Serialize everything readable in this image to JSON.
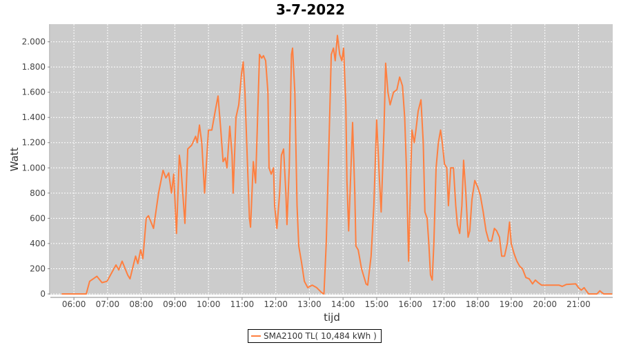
{
  "chart_data": {
    "type": "line",
    "title": "3-7-2022",
    "xlabel": "tijd",
    "ylabel": "Watt",
    "xlim": [
      "05:18",
      "22:01"
    ],
    "ylim": [
      0,
      2140
    ],
    "grid": true,
    "legend_placement": "bottom",
    "colors": {
      "line": "#ff7f3f",
      "plot_background": "#cccccc",
      "grid": "#ffffff"
    },
    "x_ticks": [
      "06:00",
      "07:00",
      "08:00",
      "09:00",
      "10:00",
      "11:00",
      "12:00",
      "13:00",
      "14:00",
      "15:00",
      "16:00",
      "17:00",
      "18:00",
      "19:00",
      "20:00",
      "21:00"
    ],
    "y_ticks": [
      0,
      200,
      400,
      600,
      800,
      1000,
      1200,
      1400,
      1600,
      1800,
      2000
    ],
    "y_tick_labels": [
      "0",
      "200",
      "400",
      "600",
      "800",
      "1.000",
      "1.200",
      "1.400",
      "1.600",
      "1.800",
      "2.000"
    ],
    "series": [
      {
        "name": "SMA2100 TL( 10,484 kWh )",
        "points": [
          [
            "05:38",
            0
          ],
          [
            "06:22",
            0
          ],
          [
            "06:28",
            100
          ],
          [
            "06:41",
            140
          ],
          [
            "06:50",
            90
          ],
          [
            "06:59",
            100
          ],
          [
            "07:15",
            230
          ],
          [
            "07:20",
            190
          ],
          [
            "07:26",
            260
          ],
          [
            "07:36",
            150
          ],
          [
            "07:40",
            120
          ],
          [
            "07:50",
            300
          ],
          [
            "07:54",
            240
          ],
          [
            "07:59",
            350
          ],
          [
            "08:03",
            280
          ],
          [
            "08:09",
            600
          ],
          [
            "08:13",
            620
          ],
          [
            "08:22",
            520
          ],
          [
            "08:31",
            800
          ],
          [
            "08:39",
            980
          ],
          [
            "08:44",
            920
          ],
          [
            "08:49",
            960
          ],
          [
            "08:54",
            800
          ],
          [
            "08:58",
            950
          ],
          [
            "09:03",
            480
          ],
          [
            "09:08",
            1100
          ],
          [
            "09:11",
            1000
          ],
          [
            "09:18",
            560
          ],
          [
            "09:23",
            1150
          ],
          [
            "09:30",
            1180
          ],
          [
            "09:37",
            1250
          ],
          [
            "09:40",
            1200
          ],
          [
            "09:44",
            1340
          ],
          [
            "09:48",
            1200
          ],
          [
            "09:53",
            800
          ],
          [
            "10:00",
            1300
          ],
          [
            "10:06",
            1300
          ],
          [
            "10:12",
            1450
          ],
          [
            "10:17",
            1570
          ],
          [
            "10:22",
            1300
          ],
          [
            "10:26",
            1050
          ],
          [
            "10:30",
            1080
          ],
          [
            "10:33",
            1000
          ],
          [
            "10:38",
            1330
          ],
          [
            "10:42",
            1100
          ],
          [
            "10:44",
            800
          ],
          [
            "10:49",
            1400
          ],
          [
            "10:54",
            1500
          ],
          [
            "10:59",
            1750
          ],
          [
            "11:02",
            1840
          ],
          [
            "11:05",
            1600
          ],
          [
            "11:09",
            1100
          ],
          [
            "11:13",
            600
          ],
          [
            "11:15",
            530
          ],
          [
            "11:20",
            1050
          ],
          [
            "11:24",
            880
          ],
          [
            "11:27",
            1300
          ],
          [
            "11:31",
            1900
          ],
          [
            "11:35",
            1870
          ],
          [
            "11:38",
            1890
          ],
          [
            "11:42",
            1850
          ],
          [
            "11:46",
            1600
          ],
          [
            "11:48",
            1000
          ],
          [
            "11:52",
            950
          ],
          [
            "11:56",
            1000
          ],
          [
            "11:58",
            700
          ],
          [
            "12:02",
            520
          ],
          [
            "12:07",
            800
          ],
          [
            "12:10",
            1100
          ],
          [
            "12:14",
            1150
          ],
          [
            "12:18",
            800
          ],
          [
            "12:20",
            550
          ],
          [
            "12:24",
            1000
          ],
          [
            "12:28",
            1900
          ],
          [
            "12:30",
            1950
          ],
          [
            "12:34",
            1600
          ],
          [
            "12:38",
            700
          ],
          [
            "12:41",
            380
          ],
          [
            "12:46",
            250
          ],
          [
            "12:51",
            100
          ],
          [
            "12:57",
            50
          ],
          [
            "13:05",
            70
          ],
          [
            "13:13",
            50
          ],
          [
            "13:22",
            10
          ],
          [
            "13:26",
            0
          ],
          [
            "13:30",
            400
          ],
          [
            "13:35",
            1200
          ],
          [
            "13:39",
            1900
          ],
          [
            "13:43",
            1950
          ],
          [
            "13:46",
            1850
          ],
          [
            "13:50",
            2050
          ],
          [
            "13:54",
            1900
          ],
          [
            "13:58",
            1850
          ],
          [
            "14:01",
            1950
          ],
          [
            "14:05",
            1500
          ],
          [
            "14:07",
            900
          ],
          [
            "14:10",
            500
          ],
          [
            "14:15",
            1100
          ],
          [
            "14:17",
            1360
          ],
          [
            "14:21",
            800
          ],
          [
            "14:23",
            380
          ],
          [
            "14:27",
            350
          ],
          [
            "14:33",
            200
          ],
          [
            "14:41",
            80
          ],
          [
            "14:44",
            70
          ],
          [
            "14:50",
            300
          ],
          [
            "14:55",
            700
          ],
          [
            "15:00",
            1380
          ],
          [
            "15:05",
            900
          ],
          [
            "15:08",
            650
          ],
          [
            "15:13",
            1300
          ],
          [
            "15:16",
            1830
          ],
          [
            "15:20",
            1600
          ],
          [
            "15:24",
            1500
          ],
          [
            "15:30",
            1600
          ],
          [
            "15:36",
            1620
          ],
          [
            "15:41",
            1720
          ],
          [
            "15:46",
            1650
          ],
          [
            "15:50",
            1400
          ],
          [
            "15:53",
            1000
          ],
          [
            "15:57",
            260
          ],
          [
            "16:01",
            1000
          ],
          [
            "16:03",
            1300
          ],
          [
            "16:07",
            1200
          ],
          [
            "16:10",
            1300
          ],
          [
            "16:14",
            1450
          ],
          [
            "16:19",
            1540
          ],
          [
            "16:23",
            1200
          ],
          [
            "16:26",
            650
          ],
          [
            "16:30",
            600
          ],
          [
            "16:33",
            400
          ],
          [
            "16:36",
            150
          ],
          [
            "16:39",
            110
          ],
          [
            "16:42",
            400
          ],
          [
            "16:46",
            1000
          ],
          [
            "16:50",
            1200
          ],
          [
            "16:54",
            1300
          ],
          [
            "16:57",
            1200
          ],
          [
            "17:01",
            1030
          ],
          [
            "17:05",
            1000
          ],
          [
            "17:08",
            700
          ],
          [
            "17:12",
            1000
          ],
          [
            "17:17",
            1000
          ],
          [
            "17:21",
            700
          ],
          [
            "17:24",
            550
          ],
          [
            "17:28",
            480
          ],
          [
            "17:32",
            700
          ],
          [
            "17:35",
            1060
          ],
          [
            "17:39",
            800
          ],
          [
            "17:43",
            450
          ],
          [
            "17:46",
            500
          ],
          [
            "17:50",
            750
          ],
          [
            "17:55",
            900
          ],
          [
            "18:00",
            850
          ],
          [
            "18:05",
            780
          ],
          [
            "18:10",
            650
          ],
          [
            "18:15",
            500
          ],
          [
            "18:20",
            420
          ],
          [
            "18:25",
            420
          ],
          [
            "18:30",
            520
          ],
          [
            "18:34",
            500
          ],
          [
            "18:39",
            450
          ],
          [
            "18:43",
            300
          ],
          [
            "18:48",
            300
          ],
          [
            "18:53",
            400
          ],
          [
            "18:57",
            570
          ],
          [
            "19:00",
            400
          ],
          [
            "19:05",
            320
          ],
          [
            "19:10",
            260
          ],
          [
            "19:15",
            220
          ],
          [
            "19:20",
            200
          ],
          [
            "19:26",
            130
          ],
          [
            "19:32",
            120
          ],
          [
            "19:38",
            80
          ],
          [
            "19:43",
            110
          ],
          [
            "19:48",
            90
          ],
          [
            "19:54",
            70
          ],
          [
            "20:13",
            70
          ],
          [
            "20:25",
            70
          ],
          [
            "20:31",
            60
          ],
          [
            "20:38",
            75
          ],
          [
            "20:55",
            80
          ],
          [
            "21:00",
            50
          ],
          [
            "21:05",
            30
          ],
          [
            "21:10",
            50
          ],
          [
            "21:13",
            30
          ],
          [
            "21:18",
            0
          ],
          [
            "21:33",
            0
          ],
          [
            "21:38",
            25
          ],
          [
            "21:42",
            10
          ],
          [
            "21:45",
            0
          ],
          [
            "22:00",
            0
          ]
        ]
      }
    ]
  }
}
